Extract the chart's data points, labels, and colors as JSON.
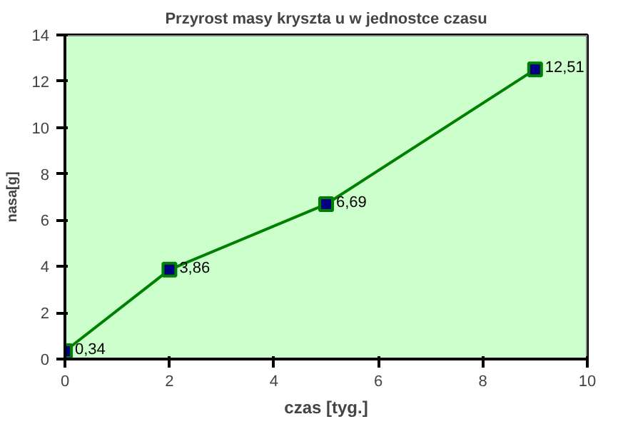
{
  "chart_data": {
    "type": "line",
    "title": "Przyrost masy kryszta u w jednostce czasu",
    "xlabel": "czas [tyg.]",
    "ylabel": "nasa[g]",
    "x": [
      0,
      2,
      5,
      9
    ],
    "series": [
      {
        "color": "#008000",
        "values": [
          0.34,
          3.86,
          6.69,
          12.51
        ],
        "value_labels": [
          "0,34",
          "3,86",
          "6,69",
          "12,51"
        ]
      }
    ],
    "xlim": [
      0,
      10
    ],
    "xticks": [
      0,
      2,
      4,
      6,
      8,
      10
    ],
    "ylim": [
      0,
      14
    ],
    "yticks": [
      0,
      2,
      4,
      6,
      8,
      10,
      12,
      14
    ],
    "grid": false,
    "marker": "square",
    "line_style": "solid"
  }
}
